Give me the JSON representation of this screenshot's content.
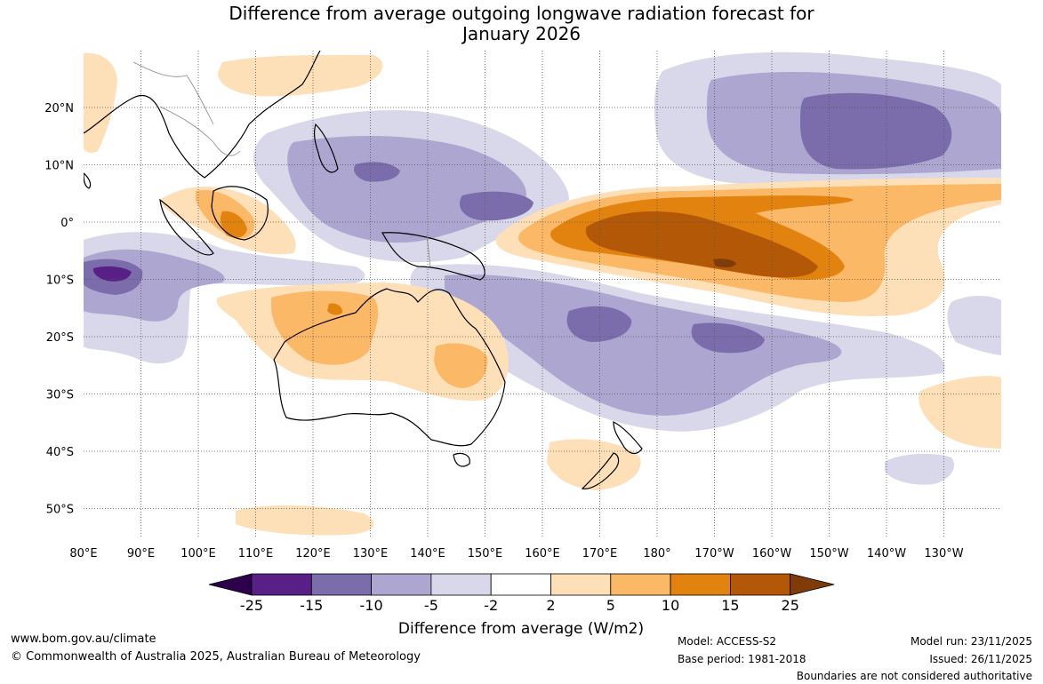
{
  "title": {
    "line1": "Difference from average outgoing longwave radiation forecast for",
    "line2": "January 2026"
  },
  "map": {
    "lat_labels": [
      "20°N",
      "10°N",
      "0°",
      "10°S",
      "20°S",
      "30°S",
      "40°S",
      "50°S"
    ],
    "lon_labels": [
      "80°E",
      "90°E",
      "100°E",
      "110°E",
      "120°E",
      "130°E",
      "140°E",
      "150°E",
      "160°E",
      "170°E",
      "180°",
      "170°W",
      "160°W",
      "150°W",
      "140°W",
      "130°W"
    ]
  },
  "colorbar": {
    "levels": [
      "-25",
      "-15",
      "-10",
      "-5",
      "-2",
      "2",
      "5",
      "10",
      "15",
      "25"
    ],
    "colors": [
      "#581f87",
      "#7b6dab",
      "#aca6d0",
      "#d8d8ea",
      "#ffffff",
      "#fee0b8",
      "#fbb866",
      "#e2830f",
      "#b35806",
      "#7f3b08",
      "#2d004b"
    ],
    "label": "Difference from average (W/m2)"
  },
  "footer": {
    "url": "www.bom.gov.au/climate",
    "copyright": "© Commonwealth of Australia 2025, Australian Bureau of Meteorology",
    "model": "Model: ACCESS-S2",
    "base_period": "Base period: 1981-2018",
    "model_run": "Model run: 23/11/2025",
    "issued": "Issued: 26/11/2025",
    "disclaimer": "Boundaries are not considered authoritative"
  }
}
